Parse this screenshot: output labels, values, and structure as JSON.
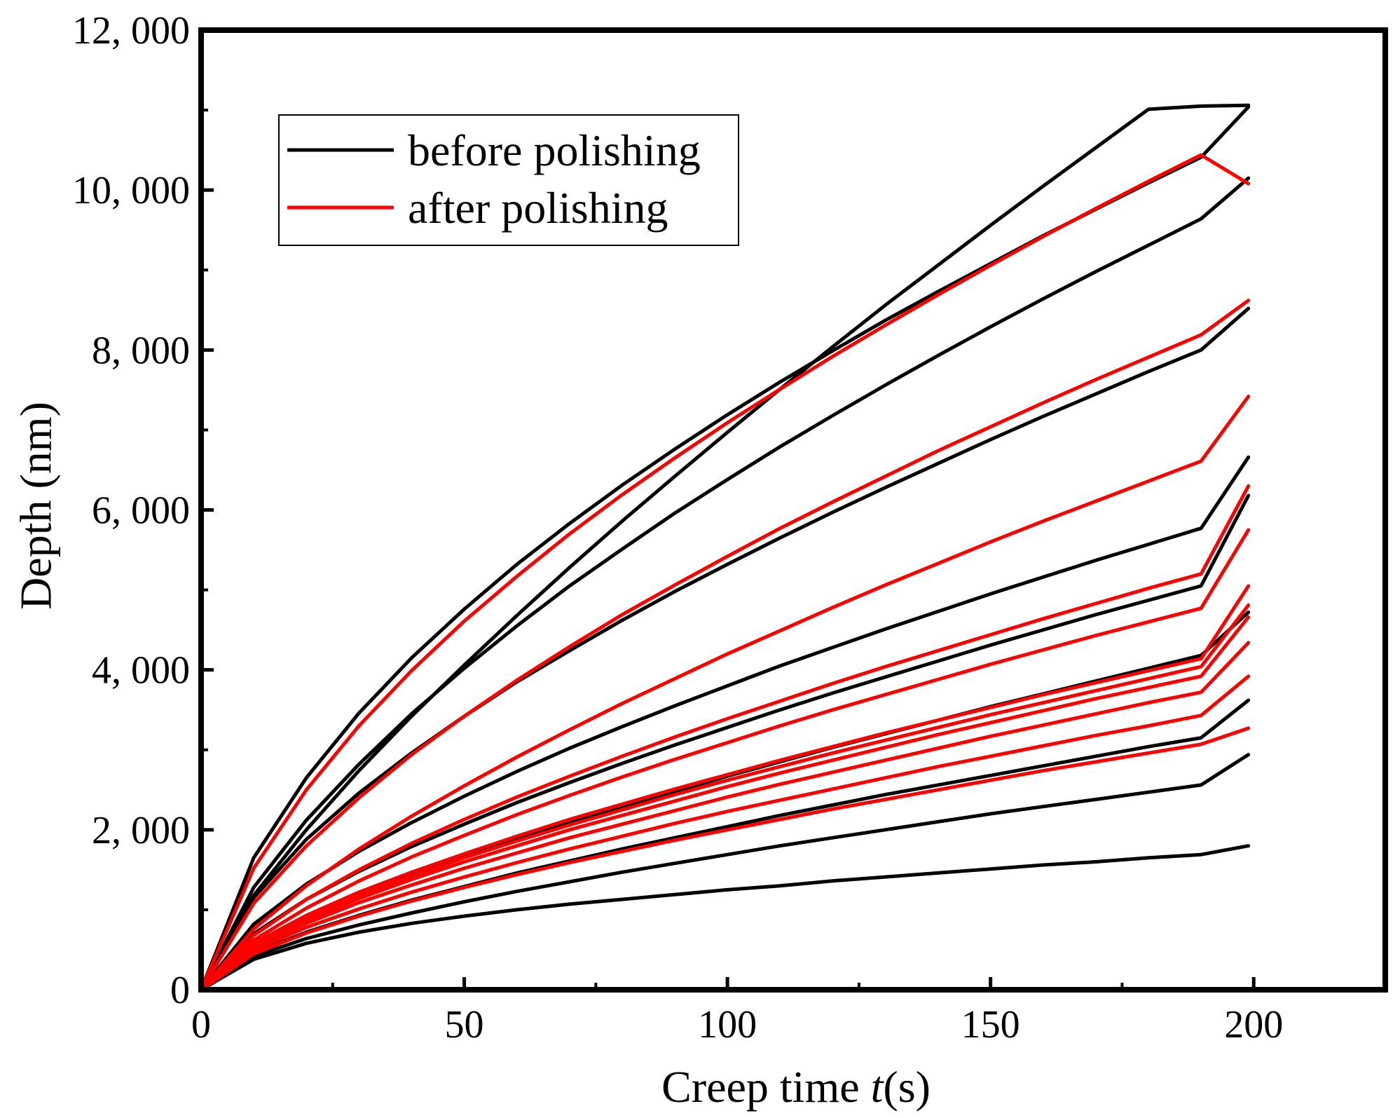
{
  "chart_data": {
    "type": "line",
    "title": "",
    "xlabel_prefix": "Creep time ",
    "xlabel_var": "t",
    "xlabel_suffix": "(s)",
    "ylabel": "Depth (nm)",
    "xlim": [
      0,
      225
    ],
    "ylim": [
      0,
      12000
    ],
    "x_ticks": [
      0,
      50,
      100,
      150,
      200
    ],
    "x_tick_labels": [
      "0",
      "50",
      "100",
      "150",
      "200"
    ],
    "y_ticks": [
      0,
      2000,
      4000,
      6000,
      8000,
      10000,
      12000
    ],
    "y_tick_labels": [
      "0",
      "2, 000",
      "4, 000",
      "6, 000",
      "8, 000",
      "10, 000",
      "12, 000"
    ],
    "grid": false,
    "legend_position": "top-left",
    "legend": [
      {
        "label": "before polishing",
        "color": "#000000"
      },
      {
        "label": "after polishing",
        "color": "#ff0000"
      }
    ],
    "x": [
      0,
      10,
      20,
      30,
      40,
      50,
      60,
      70,
      80,
      90,
      100,
      110,
      120,
      130,
      140,
      150,
      160,
      170,
      180,
      190,
      199
    ],
    "series": [
      {
        "group": "before polishing",
        "color": "#000000",
        "values": [
          0,
          1650,
          2650,
          3460,
          4150,
          4760,
          5320,
          5830,
          6310,
          6760,
          7190,
          7600,
          7990,
          8370,
          8730,
          9080,
          9430,
          9760,
          10090,
          10410,
          11040
        ]
      },
      {
        "group": "before polishing",
        "color": "#000000",
        "values": [
          0,
          1180,
          2000,
          2740,
          3420,
          4060,
          4680,
          5280,
          5860,
          6420,
          6970,
          7510,
          8040,
          8560,
          9060,
          9560,
          10050,
          10530,
          11010,
          11050,
          11060
        ]
      },
      {
        "group": "before polishing",
        "color": "#000000",
        "values": [
          0,
          1280,
          2120,
          2820,
          3450,
          4020,
          4550,
          5050,
          5510,
          5960,
          6380,
          6790,
          7180,
          7560,
          7930,
          8290,
          8640,
          8980,
          9310,
          9640,
          10150
        ]
      },
      {
        "group": "before polishing",
        "color": "#000000",
        "values": [
          0,
          1150,
          1880,
          2460,
          2960,
          3420,
          3850,
          4240,
          4620,
          4980,
          5320,
          5650,
          5970,
          6280,
          6580,
          6880,
          7170,
          7450,
          7730,
          8000,
          8520
        ]
      },
      {
        "group": "before polishing",
        "color": "#000000",
        "values": [
          0,
          820,
          1320,
          1730,
          2090,
          2420,
          2730,
          3020,
          3290,
          3550,
          3800,
          4050,
          4280,
          4510,
          4730,
          4950,
          5160,
          5370,
          5570,
          5770,
          6660
        ]
      },
      {
        "group": "before polishing",
        "color": "#000000",
        "values": [
          0,
          700,
          1130,
          1480,
          1790,
          2070,
          2340,
          2590,
          2830,
          3060,
          3280,
          3500,
          3710,
          3910,
          4110,
          4310,
          4500,
          4690,
          4870,
          5050,
          6180
        ]
      },
      {
        "group": "before polishing",
        "color": "#000000",
        "values": [
          0,
          560,
          900,
          1180,
          1430,
          1660,
          1880,
          2090,
          2290,
          2480,
          2670,
          2850,
          3030,
          3200,
          3370,
          3540,
          3700,
          3860,
          4020,
          4180,
          4720
        ]
      },
      {
        "group": "before polishing",
        "color": "#000000",
        "values": [
          0,
          460,
          720,
          930,
          1120,
          1290,
          1460,
          1610,
          1760,
          1900,
          2040,
          2180,
          2310,
          2440,
          2560,
          2680,
          2800,
          2920,
          3040,
          3150,
          3620
        ]
      },
      {
        "group": "before polishing",
        "color": "#000000",
        "values": [
          0,
          420,
          640,
          810,
          960,
          1100,
          1230,
          1350,
          1470,
          1580,
          1690,
          1800,
          1900,
          2000,
          2100,
          2200,
          2290,
          2380,
          2470,
          2560,
          2940
        ]
      },
      {
        "group": "before polishing",
        "color": "#000000",
        "values": [
          0,
          380,
          580,
          720,
          830,
          920,
          1000,
          1070,
          1130,
          1190,
          1250,
          1300,
          1360,
          1410,
          1460,
          1510,
          1560,
          1600,
          1650,
          1690,
          1800
        ]
      },
      {
        "group": "after polishing",
        "color": "#ff0000",
        "values": [
          0,
          1520,
          2500,
          3300,
          3990,
          4610,
          5170,
          5700,
          6190,
          6650,
          7090,
          7510,
          7920,
          8310,
          8690,
          9060,
          9420,
          9770,
          10110,
          10440,
          10080
        ]
      },
      {
        "group": "after polishing",
        "color": "#ff0000",
        "values": [
          0,
          1080,
          1800,
          2400,
          2940,
          3420,
          3870,
          4290,
          4690,
          5060,
          5420,
          5770,
          6100,
          6420,
          6740,
          7040,
          7340,
          7630,
          7910,
          8190,
          8620
        ]
      },
      {
        "group": "after polishing",
        "color": "#ff0000",
        "values": [
          0,
          760,
          1300,
          1760,
          2170,
          2550,
          2910,
          3250,
          3580,
          3890,
          4200,
          4490,
          4780,
          5060,
          5330,
          5600,
          5860,
          6110,
          6360,
          6610,
          7420
        ]
      },
      {
        "group": "after polishing",
        "color": "#ff0000",
        "values": [
          0,
          680,
          1130,
          1500,
          1830,
          2130,
          2410,
          2670,
          2920,
          3160,
          3390,
          3610,
          3830,
          4040,
          4240,
          4440,
          4640,
          4830,
          5020,
          5200,
          6300
        ]
      },
      {
        "group": "after polishing",
        "color": "#ff0000",
        "values": [
          0,
          620,
          1020,
          1360,
          1660,
          1930,
          2190,
          2430,
          2660,
          2880,
          3090,
          3300,
          3500,
          3690,
          3880,
          4070,
          4250,
          4430,
          4600,
          4770,
          5750
        ]
      },
      {
        "group": "after polishing",
        "color": "#ff0000",
        "values": [
          0,
          580,
          930,
          1220,
          1470,
          1700,
          1920,
          2130,
          2320,
          2510,
          2690,
          2870,
          3040,
          3210,
          3370,
          3530,
          3690,
          3840,
          3990,
          4140,
          5050
        ]
      },
      {
        "group": "after polishing",
        "color": "#ff0000",
        "values": [
          0,
          560,
          900,
          1180,
          1420,
          1650,
          1860,
          2060,
          2250,
          2440,
          2620,
          2790,
          2960,
          3120,
          3280,
          3440,
          3590,
          3740,
          3890,
          4040,
          4810
        ]
      },
      {
        "group": "after polishing",
        "color": "#ff0000",
        "values": [
          0,
          540,
          870,
          1140,
          1380,
          1600,
          1800,
          2000,
          2180,
          2360,
          2540,
          2710,
          2870,
          3030,
          3190,
          3340,
          3490,
          3640,
          3780,
          3920,
          4660
        ]
      },
      {
        "group": "after polishing",
        "color": "#ff0000",
        "values": [
          0,
          520,
          830,
          1090,
          1310,
          1520,
          1710,
          1900,
          2070,
          2240,
          2410,
          2570,
          2720,
          2870,
          3020,
          3170,
          3310,
          3450,
          3590,
          3720,
          4340
        ]
      },
      {
        "group": "after polishing",
        "color": "#ff0000",
        "values": [
          0,
          490,
          780,
          1010,
          1220,
          1410,
          1590,
          1760,
          1920,
          2080,
          2230,
          2370,
          2510,
          2650,
          2790,
          2920,
          3050,
          3180,
          3300,
          3430,
          3920
        ]
      },
      {
        "group": "after polishing",
        "color": "#ff0000",
        "values": [
          0,
          450,
          710,
          920,
          1110,
          1280,
          1440,
          1590,
          1730,
          1870,
          2000,
          2130,
          2260,
          2380,
          2500,
          2620,
          2740,
          2850,
          2960,
          3070,
          3270
        ]
      }
    ]
  }
}
